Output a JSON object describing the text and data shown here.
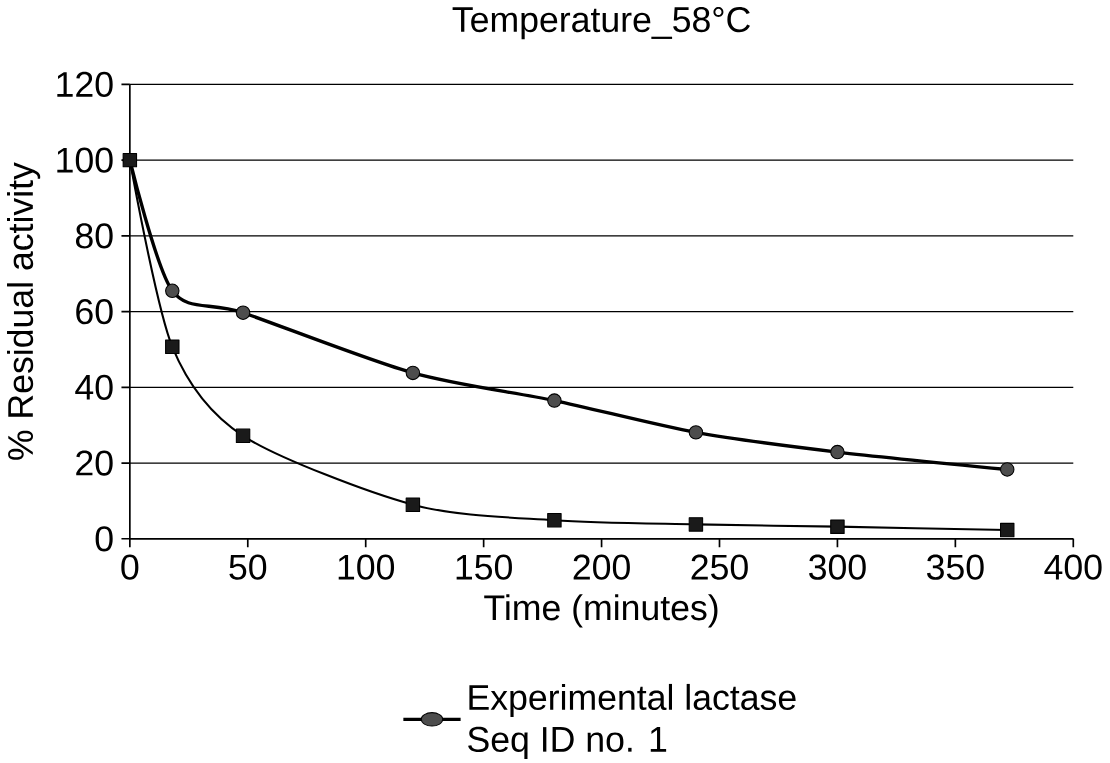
{
  "chart_data": {
    "type": "line",
    "title": "Temperature_58°C",
    "xlabel": "Time (minutes)",
    "ylabel": "% Residual activity",
    "xlim": [
      0,
      400
    ],
    "xticks": [
      0,
      50,
      100,
      150,
      200,
      250,
      300,
      350,
      400
    ],
    "ylim": [
      0,
      120
    ],
    "yticks": [
      0,
      20,
      40,
      60,
      80,
      100,
      120
    ],
    "grid": "y",
    "legend": "bottom",
    "series": [
      {
        "name": "Experimental lactase\nSeq ID no. 1",
        "color": "#4d4d4d",
        "marker": "circle",
        "x": [
          0,
          18,
          48,
          120,
          180,
          240,
          300,
          372
        ],
        "values": [
          100,
          65.5,
          59.7,
          43.8,
          36.5,
          28.1,
          22.9,
          18.3
        ]
      },
      {
        "color": "#1a1a1a",
        "marker": "square",
        "x": [
          0,
          18,
          48,
          120,
          180,
          240,
          300,
          372
        ],
        "values": [
          100,
          50.7,
          27.2,
          9,
          4.9,
          3.8,
          3.2,
          2.3
        ]
      }
    ]
  }
}
